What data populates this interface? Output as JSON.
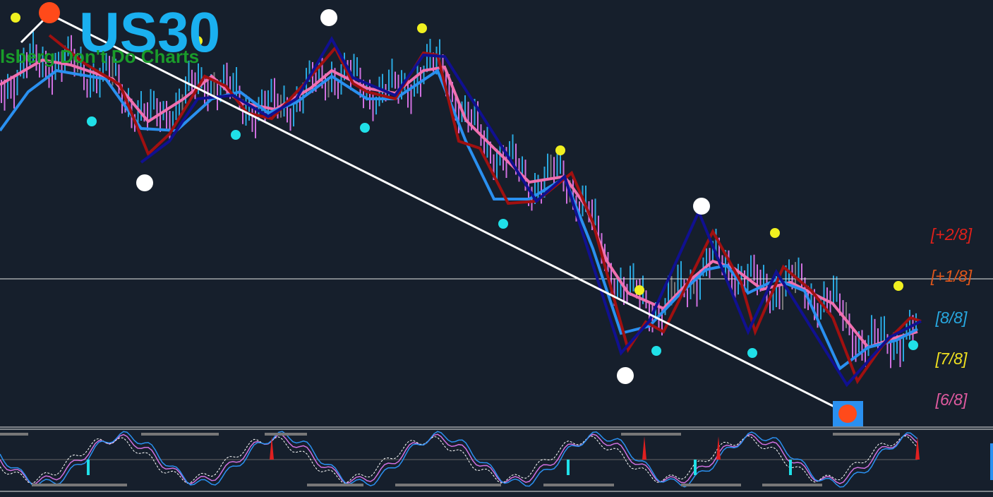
{
  "chart_title": "US30",
  "chart_subtitle": "lsberg Don't Do Charts",
  "levels": [
    "[+2/8]",
    "[+1/8]",
    "[8/8]",
    "[7/8]",
    "[6/8]"
  ]
}
